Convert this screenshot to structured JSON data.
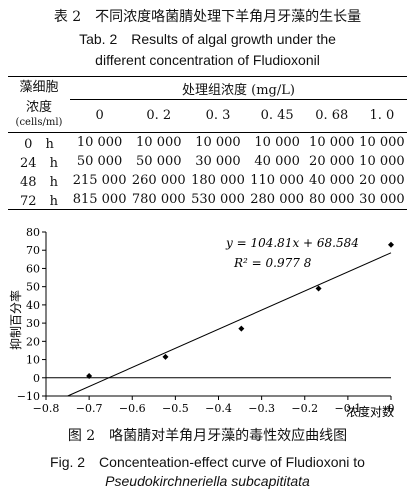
{
  "table_caption": {
    "cn": "表 2　不同浓度咯菌腈处理下羊角月牙藻的生长量",
    "en_line1": "Tab. 2　Results of algal growth under the",
    "en_line2": "different concentration of Fludioxonil"
  },
  "table": {
    "row_header_line1": "藻细胞",
    "row_header_line2": "浓度",
    "row_header_unit": "(cells/ml)",
    "group_header": "处理组浓度 (mg/L)",
    "concentrations": [
      "0",
      "0. 2",
      "0. 3",
      "0. 45",
      "0. 68",
      "1. 0"
    ],
    "rows": [
      {
        "time": "0　h",
        "values": [
          "10 000",
          "10 000",
          "10 000",
          "10 000",
          "10 000",
          "10 000"
        ]
      },
      {
        "time": "24　h",
        "values": [
          "50 000",
          "50 000",
          "30 000",
          "40 000",
          "20 000",
          "10 000"
        ]
      },
      {
        "time": "48　h",
        "values": [
          "215 000",
          "260 000",
          "180 000",
          "110 000",
          "40 000",
          "20 000"
        ]
      },
      {
        "time": "72　h",
        "values": [
          "815 000",
          "780 000",
          "530 000",
          "280 000",
          "80 000",
          "30 000"
        ]
      }
    ]
  },
  "figure_caption": {
    "cn": "图 2　咯菌腈对羊角月牙藻的毒性效应曲线图",
    "en_line1": "Fig. 2　Concenteation-effect curve of Fludioxoni to",
    "en_line2": "Pseudokirchneriella subcapititata"
  },
  "chart_data": {
    "type": "scatter",
    "xlabel": "浓度对数",
    "ylabel": "抑制百分率",
    "xlim": [
      -0.8,
      0
    ],
    "ylim": [
      -10,
      80
    ],
    "xticks": [
      "−0.8",
      "−0.7",
      "−0.6",
      "−0.5",
      "−0.4",
      "−0.3",
      "−0.2",
      "−0.1",
      "0"
    ],
    "yticks": [
      "−10",
      "0",
      "10",
      "20",
      "30",
      "40",
      "50",
      "60",
      "70",
      "80"
    ],
    "series": [
      {
        "points": [
          [
            -0.7,
            1
          ],
          [
            -0.523,
            11.5
          ],
          [
            -0.347,
            27
          ],
          [
            -0.168,
            49
          ],
          [
            0,
            73
          ]
        ]
      }
    ],
    "fit": {
      "slope": 104.81,
      "intercept": 68.584
    },
    "equation_label": "y = 104.81x + 68.584",
    "r2_label": "R² = 0.977 8"
  }
}
